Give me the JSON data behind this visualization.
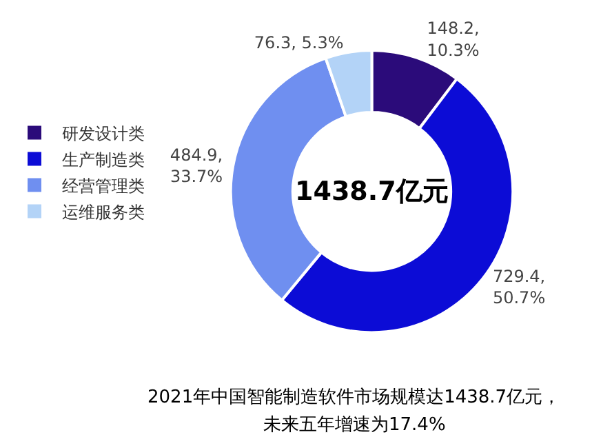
{
  "chart_data": {
    "type": "donut",
    "categories": [
      "研发设计类",
      "生产制造类",
      "经营管理类",
      "运维服务类"
    ],
    "values": [
      148.2,
      729.4,
      484.9,
      76.3
    ],
    "colors": [
      "#2b0b7a",
      "#0c0cd6",
      "#6f8ff0",
      "#b3d3f7"
    ],
    "value_labels": [
      "148.2,\n10.3%",
      "729.4,\n50.7%",
      "484.9,\n33.7%",
      "76.3, 5.3%"
    ],
    "annotations": [
      "1438.7亿元",
      "2021年中国智能制造软件市场规模达1438.7亿元，",
      "未来五年增速为17.4%"
    ],
    "legend": "left"
  }
}
